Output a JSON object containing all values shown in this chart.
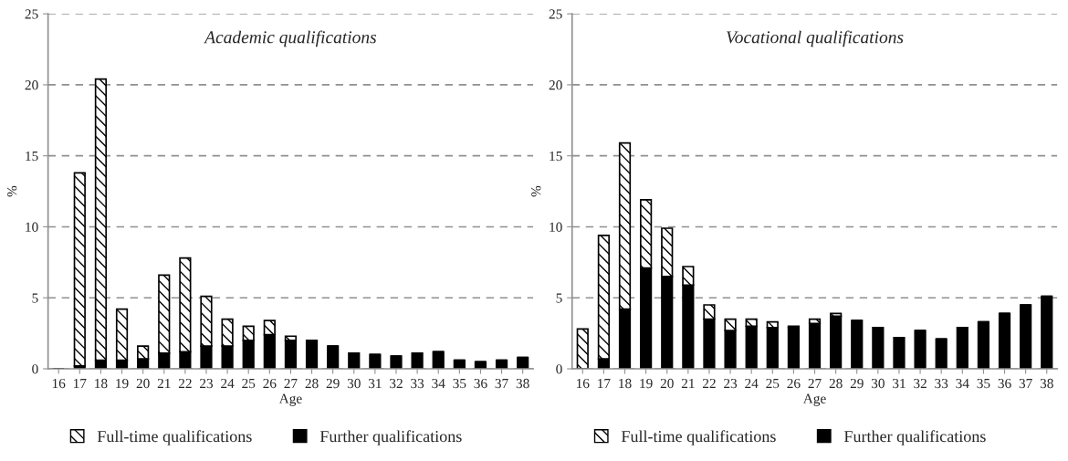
{
  "chart_data": [
    {
      "type": "bar",
      "title": "Academic qualifications",
      "xlabel": "Age",
      "ylabel": "%",
      "stacked": true,
      "grid": "y",
      "legend": "bottom",
      "categories": [
        "16",
        "17",
        "18",
        "19",
        "20",
        "21",
        "22",
        "23",
        "24",
        "25",
        "26",
        "27",
        "28",
        "29",
        "30",
        "31",
        "32",
        "33",
        "34",
        "35",
        "36",
        "37",
        "38"
      ],
      "series": [
        {
          "name": "Further qualifications",
          "color": "#000000",
          "values": [
            0,
            0.2,
            0.6,
            0.6,
            0.7,
            1.1,
            1.2,
            1.6,
            1.6,
            2.0,
            2.4,
            2.0,
            2.0,
            1.6,
            1.1,
            1.0,
            0.9,
            1.1,
            1.2,
            0.6,
            0.5,
            0.6,
            0.8
          ]
        },
        {
          "name": "Full-time qualifications",
          "color": "#000000",
          "values": [
            0,
            13.6,
            19.8,
            3.6,
            0.9,
            5.5,
            6.6,
            3.5,
            1.9,
            1.0,
            1.0,
            0.3,
            0,
            0,
            0,
            0,
            0,
            0,
            0,
            0,
            0,
            0,
            0
          ]
        }
      ],
      "ylim": [
        0,
        25
      ],
      "yticks": [
        0,
        5,
        10,
        15,
        20,
        25
      ]
    },
    {
      "type": "bar",
      "title": "Vocational qualifications",
      "xlabel": "Age",
      "ylabel": "%",
      "stacked": true,
      "grid": "y",
      "legend": "bottom",
      "categories": [
        "16",
        "17",
        "18",
        "19",
        "20",
        "21",
        "22",
        "23",
        "24",
        "25",
        "26",
        "27",
        "28",
        "29",
        "30",
        "31",
        "32",
        "33",
        "34",
        "35",
        "36",
        "37",
        "38"
      ],
      "series": [
        {
          "name": "Further qualifications",
          "color": "#000000",
          "values": [
            0,
            0.7,
            4.2,
            7.1,
            6.5,
            5.9,
            3.5,
            2.7,
            3.0,
            2.9,
            2.9,
            3.2,
            3.7,
            3.4,
            2.9,
            2.2,
            2.7,
            2.1,
            2.9,
            3.3,
            3.9,
            4.5,
            5.1
          ]
        },
        {
          "name": "Full-time qualifications",
          "color": "#000000",
          "values": [
            2.8,
            8.7,
            11.7,
            4.8,
            3.4,
            1.3,
            1.0,
            0.8,
            0.5,
            0.4,
            0.1,
            0.3,
            0.2,
            0,
            0,
            0,
            0,
            0,
            0,
            0,
            0,
            0,
            0
          ]
        }
      ],
      "ylim": [
        0,
        25
      ],
      "yticks": [
        0,
        5,
        10,
        15,
        20,
        25
      ]
    }
  ]
}
